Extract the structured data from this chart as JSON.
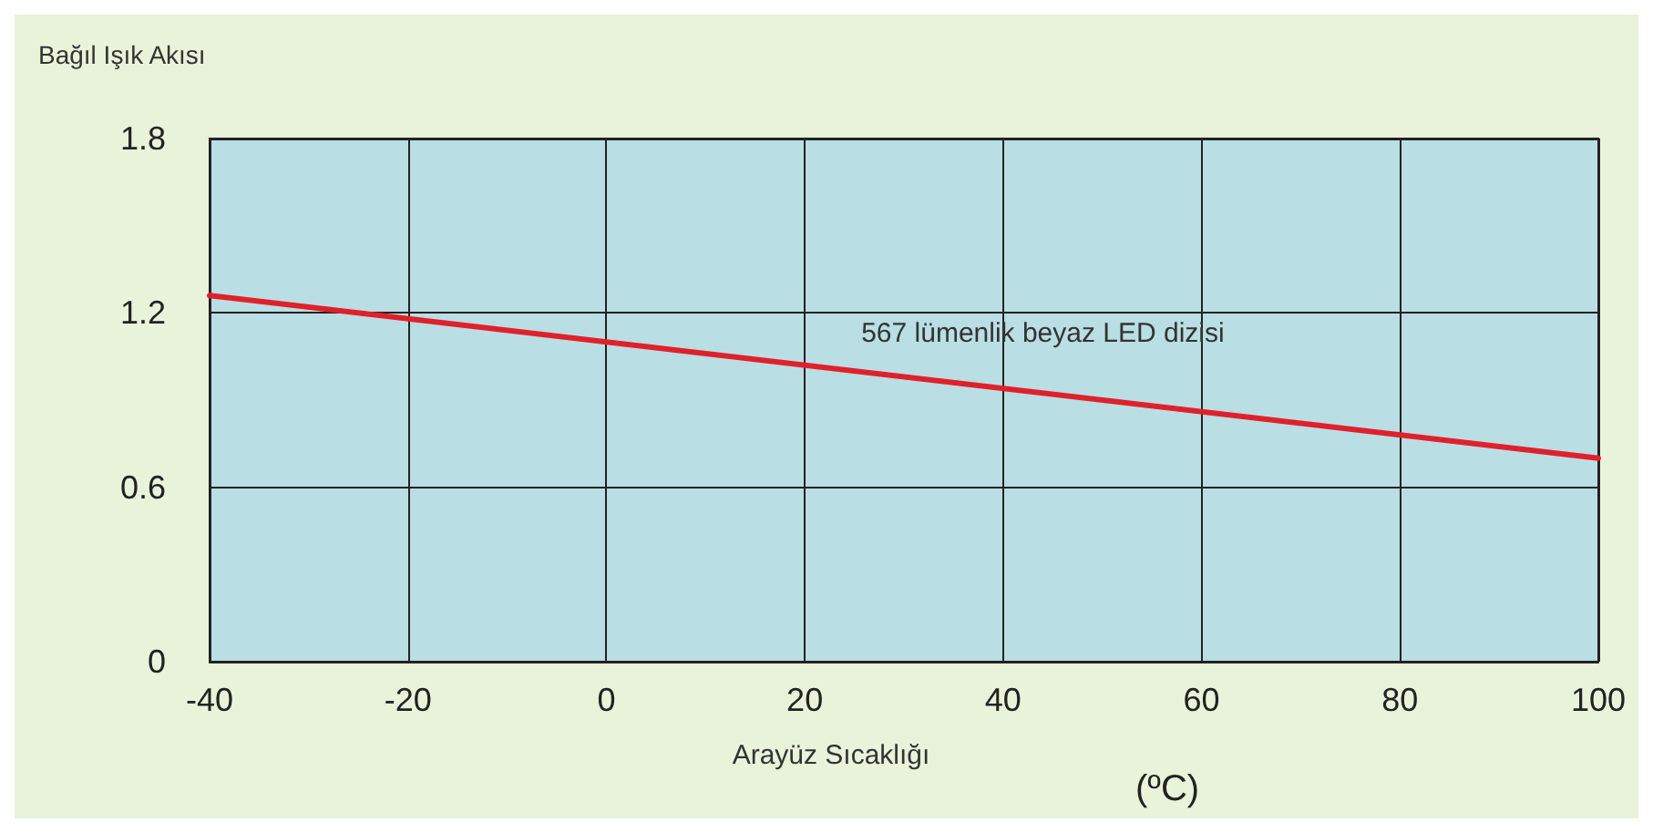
{
  "chart_data": {
    "type": "line",
    "ylabel": "Bağıl Işık Akısı",
    "xlabel": "Arayüz Sıcaklığı",
    "annotations": [
      "(ºC)"
    ],
    "x": [
      -40,
      100
    ],
    "series": [
      {
        "name": "567 lümenlik beyaz LED dizisi",
        "color": "#e0202a",
        "values": [
          1.26,
          0.7
        ]
      }
    ],
    "xlim": [
      -40,
      100
    ],
    "xticks": [
      -40,
      -20,
      0,
      20,
      40,
      60,
      80,
      100
    ],
    "ylim": [
      0,
      1.8
    ],
    "yticks": [
      0,
      0.6,
      1.2,
      1.8
    ],
    "grid": true,
    "legend": false,
    "marker": "none",
    "line_style": "solid"
  }
}
